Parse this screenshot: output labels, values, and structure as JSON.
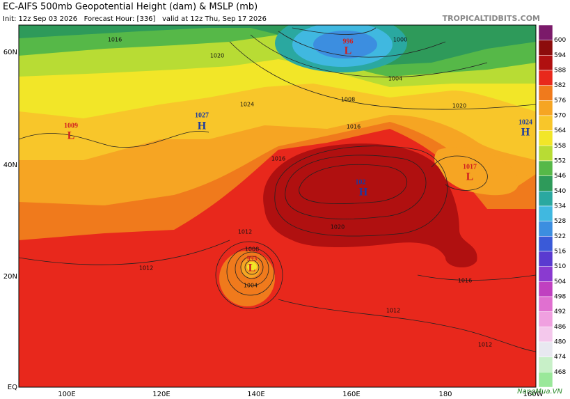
{
  "header": {
    "title": "EC-AIFS 500mb Geopotential Height (dam) & MSLP (mb)",
    "subtitle": "Init: 12z Sep 03 2026   Forecast Hour: [336]   valid at 12z Thu, Sep 17 2026",
    "site": "TROPICALTIDBITS.COM"
  },
  "axes": {
    "lat_labels": [
      "60N",
      "40N",
      "20N",
      "EQ"
    ],
    "lon_labels": [
      "100E",
      "120E",
      "140E",
      "160E",
      "180",
      "160W"
    ]
  },
  "centers": [
    {
      "letter": "L",
      "value": "996"
    },
    {
      "letter": "L",
      "value": "1009"
    },
    {
      "letter": "H",
      "value": "1027"
    },
    {
      "letter": "H",
      "value": "1024"
    },
    {
      "letter": "H",
      "value": "102"
    },
    {
      "letter": "L",
      "value": "1017"
    },
    {
      "letter": "L",
      "value": "993"
    }
  ],
  "isobar_labels": [
    "1016",
    "1020",
    "1024",
    "1000",
    "1004",
    "1008",
    "1016",
    "1020",
    "1016",
    "1012",
    "1012",
    "1008",
    "1004",
    "1020",
    "1016",
    "1012",
    "1012"
  ],
  "colorbar": {
    "labels": [
      "600",
      "594",
      "588",
      "582",
      "576",
      "570",
      "564",
      "558",
      "552",
      "546",
      "540",
      "534",
      "528",
      "522",
      "516",
      "510",
      "504",
      "498",
      "492",
      "486",
      "480",
      "474",
      "468"
    ],
    "colors": [
      "#7b1a6a",
      "#8c0c0c",
      "#b01010",
      "#e8281c",
      "#f07a1c",
      "#f6a523",
      "#f8c62a",
      "#f2e628",
      "#b8dc34",
      "#56b848",
      "#2e9a5a",
      "#2aa8a0",
      "#40b8e0",
      "#3c8ee0",
      "#3a5ad8",
      "#5a3ad0",
      "#8a3ad0",
      "#c040c0",
      "#e070d0",
      "#f0a0e0",
      "#f4c8ec",
      "#e8e8f0",
      "#c8f0c8",
      "#9ae89a"
    ]
  },
  "watermark": "NangMua.VN"
}
